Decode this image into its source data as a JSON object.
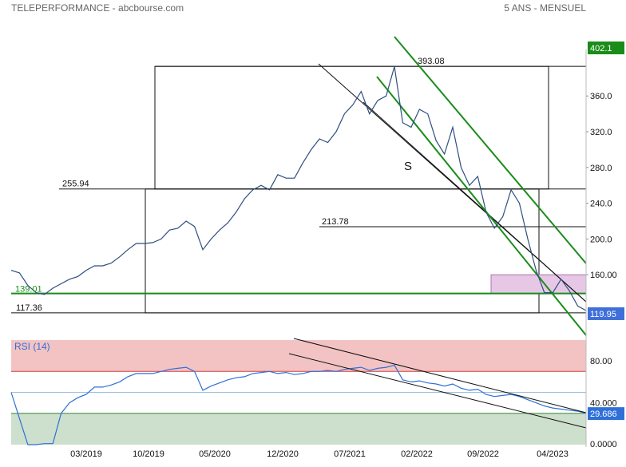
{
  "header": {
    "title": "TELEPERFORMANCE - abcbourse.com",
    "period": "5 ANS - MENSUEL"
  },
  "chart_data": [
    {
      "type": "line",
      "panel": "price",
      "x_tick_labels": [
        "03/2019",
        "10/2019",
        "05/2020",
        "12/2020",
        "07/2021",
        "02/2022",
        "09/2022",
        "04/2023"
      ],
      "y_tick_labels": [
        "360.0",
        "320.0",
        "280.0",
        "240.0",
        "200.0",
        "160.00"
      ],
      "ylim": [
        103,
        412
      ],
      "grid": false,
      "series": [
        {
          "values": [
            165,
            162,
            148,
            140,
            138,
            145,
            150,
            155,
            158,
            165,
            170,
            170,
            173,
            180,
            188,
            195,
            195,
            196,
            200,
            210,
            212,
            220,
            214,
            188,
            200,
            210,
            218,
            230,
            245,
            255,
            260,
            255,
            272,
            268,
            268,
            285,
            300,
            312,
            308,
            320,
            340,
            350,
            365,
            340,
            355,
            360,
            393,
            330,
            325,
            345,
            340,
            310,
            295,
            325,
            280,
            260,
            270,
            230,
            212,
            225,
            255,
            240,
            200,
            165,
            140,
            140,
            155,
            142,
            125,
            120
          ]
        }
      ],
      "price_labels": {
        "top": "393.08",
        "upper_mid": "255.94",
        "mid": "213.78",
        "support": "139.01",
        "low": "117.36",
        "tag_high": "402.1",
        "tag_last": "119.95"
      },
      "annotation": "S",
      "levels": {
        "top": 393.08,
        "upper_mid": 255.94,
        "mid": 213.78,
        "support": 139.01,
        "low": 117.36
      },
      "colors": {
        "line": "#2f4f7f",
        "trend_green": "#1a8c1a",
        "trend_black": "#111111",
        "tag_high_bg": "#1a8c1a",
        "tag_last_bg": "#3f6fd8",
        "support_color": "#1a8c1a",
        "box_fill": "#e6c8e6"
      }
    },
    {
      "type": "line",
      "panel": "rsi",
      "title": "RSI (14)",
      "y_tick_labels": [
        "80.00",
        "40.000",
        "0.0000"
      ],
      "ylim": [
        0,
        100
      ],
      "overbought": 70,
      "oversold": 30,
      "series": [
        {
          "values": [
            50,
            25,
            0,
            0,
            1,
            1,
            30,
            40,
            45,
            48,
            55,
            55,
            57,
            60,
            65,
            68,
            68,
            68,
            70,
            72,
            73,
            74,
            70,
            52,
            56,
            59,
            62,
            64,
            65,
            68,
            69,
            70,
            68,
            69,
            67,
            68,
            70,
            70,
            71,
            70,
            72,
            73,
            74,
            71,
            73,
            74,
            76,
            62,
            60,
            61,
            59,
            58,
            56,
            58,
            54,
            52,
            53,
            48,
            46,
            47,
            48,
            46,
            43,
            40,
            37,
            35,
            34,
            33,
            32,
            30
          ]
        }
      ],
      "tag_last": "29.686",
      "colors": {
        "line": "#2f6fd8",
        "overbought_fill": "#f0b4b4",
        "oversold_fill": "#c8dcc8",
        "tag_bg": "#2f6fd8"
      }
    }
  ]
}
